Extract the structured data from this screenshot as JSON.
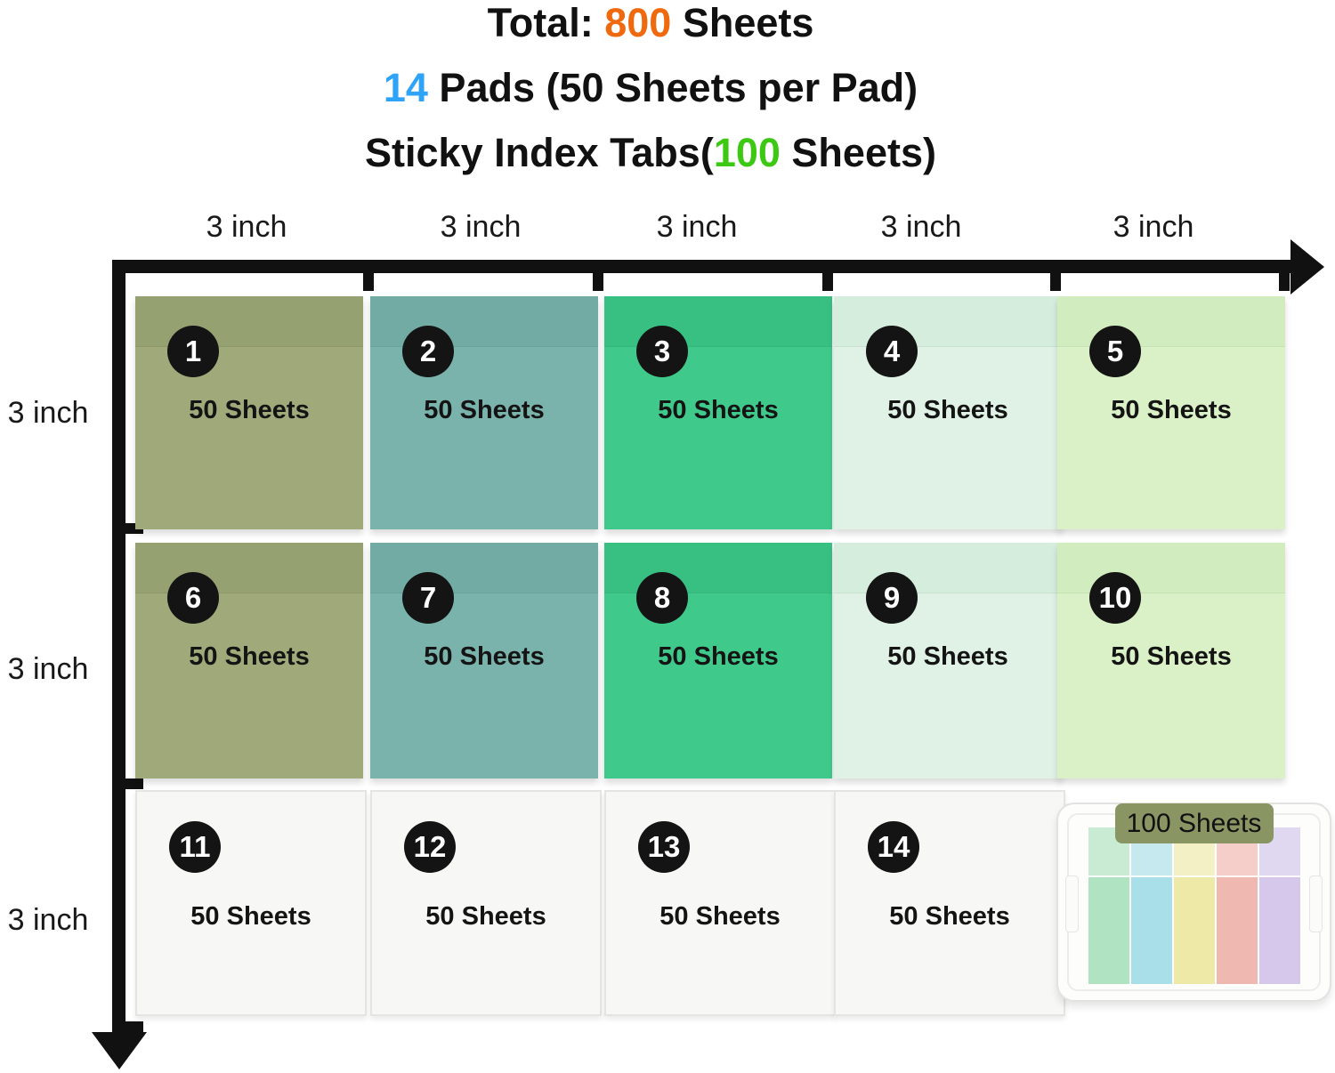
{
  "header": {
    "line1": {
      "pre": "Total: ",
      "highlight": "800",
      "post": " Sheets",
      "highlight_color": "#EF690F"
    },
    "line2": {
      "pre": "",
      "highlight": "14",
      "post": " Pads (50 Sheets per Pad)",
      "highlight_color": "#2FA3F7"
    },
    "line3": {
      "pre": "Sticky Index Tabs(",
      "highlight": "100",
      "post": " Sheets)",
      "highlight_color": "#3DC814"
    }
  },
  "axes": {
    "axis_color": "#111111",
    "top_labels": [
      "3 inch",
      "3 inch",
      "3 inch",
      "3 inch",
      "3 inch"
    ],
    "left_labels": [
      "3 inch",
      "3 inch",
      "3 inch"
    ]
  },
  "palette": {
    "olive": {
      "base": "#A0A979",
      "strip": "#96A172"
    },
    "teal": {
      "base": "#7AB3AC",
      "strip": "#71ABA4"
    },
    "green": {
      "base": "#3FCA8B",
      "strip": "#38C083"
    },
    "mint": {
      "base": "#DFF2E5",
      "strip": "#D5EDDC"
    },
    "lime": {
      "base": "#DAF1C7",
      "strip": "#D1ECBE"
    },
    "white": {
      "base": "#F7F7F5",
      "strip": "",
      "border": "#E4E4E2"
    }
  },
  "pads": [
    {
      "number": "1",
      "label": "50 Sheets",
      "color": "olive"
    },
    {
      "number": "2",
      "label": "50 Sheets",
      "color": "teal"
    },
    {
      "number": "3",
      "label": "50 Sheets",
      "color": "green"
    },
    {
      "number": "4",
      "label": "50 Sheets",
      "color": "mint"
    },
    {
      "number": "5",
      "label": "50 Sheets",
      "color": "lime"
    },
    {
      "number": "6",
      "label": "50 Sheets",
      "color": "olive"
    },
    {
      "number": "7",
      "label": "50 Sheets",
      "color": "teal"
    },
    {
      "number": "8",
      "label": "50 Sheets",
      "color": "green"
    },
    {
      "number": "9",
      "label": "50 Sheets",
      "color": "mint"
    },
    {
      "number": "10",
      "label": "50 Sheets",
      "color": "lime"
    },
    {
      "number": "11",
      "label": "50 Sheets",
      "color": "white"
    },
    {
      "number": "12",
      "label": "50 Sheets",
      "color": "white"
    },
    {
      "number": "13",
      "label": "50 Sheets",
      "color": "white"
    },
    {
      "number": "14",
      "label": "50 Sheets",
      "color": "white"
    }
  ],
  "tabs_case": {
    "label": "100 Sheets",
    "label_bg": "#8A9564",
    "strips": [
      {
        "name": "green-tab",
        "top": "#C9EBD3",
        "bottom": "#AFE3C1"
      },
      {
        "name": "blue-tab",
        "top": "#C6E9EF",
        "bottom": "#A9DFE9"
      },
      {
        "name": "yellow-tab",
        "top": "#F4F0C6",
        "bottom": "#EFE9A8"
      },
      {
        "name": "pink-tab",
        "top": "#F6CEC9",
        "bottom": "#EFB9B2"
      },
      {
        "name": "purple-tab",
        "top": "#E0D7F1",
        "bottom": "#D5C8EB"
      }
    ]
  }
}
